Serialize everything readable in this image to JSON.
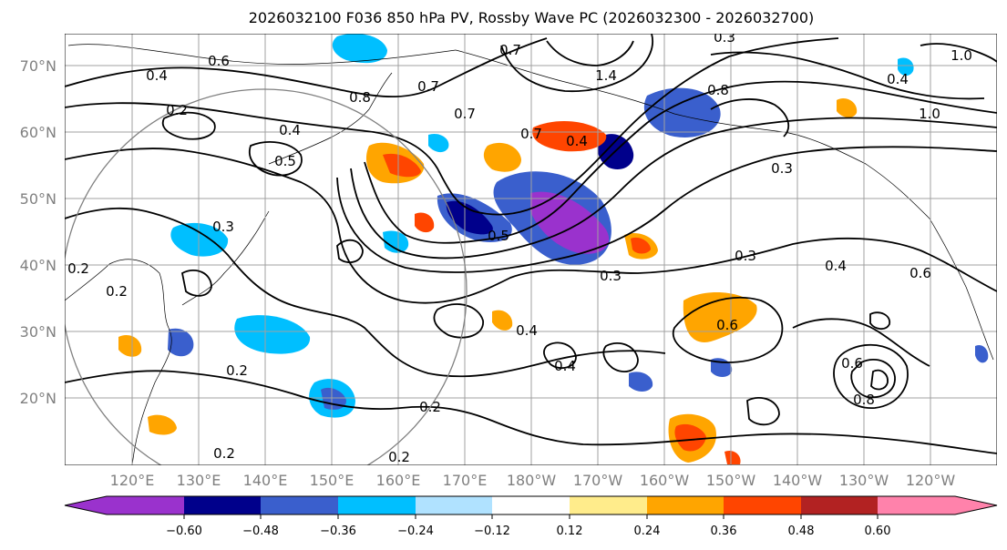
{
  "title": "2026032100 F036 850 hPa PV, Rossby Wave PC (2026032300 - 2026032700)",
  "lat_labels": [
    "70°N",
    "60°N",
    "50°N",
    "40°N",
    "30°N",
    "20°N"
  ],
  "lon_labels": [
    "120°E",
    "130°E",
    "140°E",
    "150°E",
    "160°E",
    "170°E",
    "180°W",
    "170°W",
    "160°W",
    "150°W",
    "140°W",
    "130°W",
    "120°W"
  ],
  "colorbar": {
    "colors": [
      "#9a32cd",
      "#00008b",
      "#3a5fcd",
      "#00bfff",
      "#b0e2ff",
      "#ffffff",
      "#ffec8b",
      "#ffa500",
      "#ff4500",
      "#b22222",
      "#ff82ab"
    ],
    "tick_labels": [
      "−0.60",
      "−0.48",
      "−0.36",
      "−0.24",
      "−0.12",
      "0.12",
      "0.24",
      "0.36",
      "0.48",
      "0.60"
    ]
  },
  "contour_labels": [
    "0.7",
    "0.6",
    "0.4",
    "0.2",
    "0.8",
    "0.7",
    "0.4",
    "0.5",
    "0.3",
    "0.7",
    "0.4",
    "0.7",
    "0.8",
    "1.4",
    "0.3",
    "0.3",
    "0.3",
    "0.4",
    "0.2",
    "0.2",
    "0.4",
    "0.4",
    "0.2",
    "0.2",
    "0.2",
    "0.2",
    "0.6",
    "0.8",
    "0.6",
    "1.0",
    "0.4",
    "1.0",
    "0.5",
    "0.3",
    "0.6"
  ]
}
